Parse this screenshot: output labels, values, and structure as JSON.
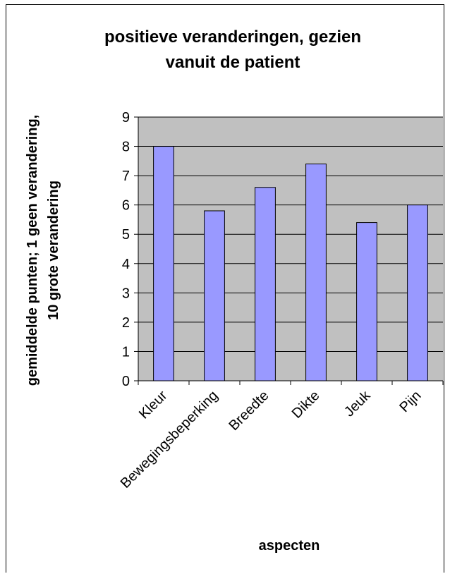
{
  "chart_data": {
    "type": "bar",
    "title_lines": [
      "positieve veranderingen, gezien",
      "vanuit de patient"
    ],
    "xlabel": "aspecten",
    "ylabel_lines": [
      "gemiddelde punten; 1 geen verandering,",
      "10 grote verandering"
    ],
    "categories": [
      "Kleur",
      "Bewegingsbeperking",
      "Breedte",
      "Dikte",
      "Jeuk",
      "Pijn"
    ],
    "values": [
      8.0,
      5.8,
      6.6,
      7.4,
      5.4,
      6.0
    ],
    "ylim": [
      0,
      9
    ],
    "yticks": [
      "0",
      "1",
      "2",
      "3",
      "4",
      "5",
      "6",
      "7",
      "8",
      "9"
    ],
    "grid": true,
    "legend": "none",
    "colors": {
      "plot_background": "#c0c0c0",
      "bar_fill": "#9999ff",
      "bar_stroke": "#000000",
      "gridline": "#000000"
    }
  }
}
